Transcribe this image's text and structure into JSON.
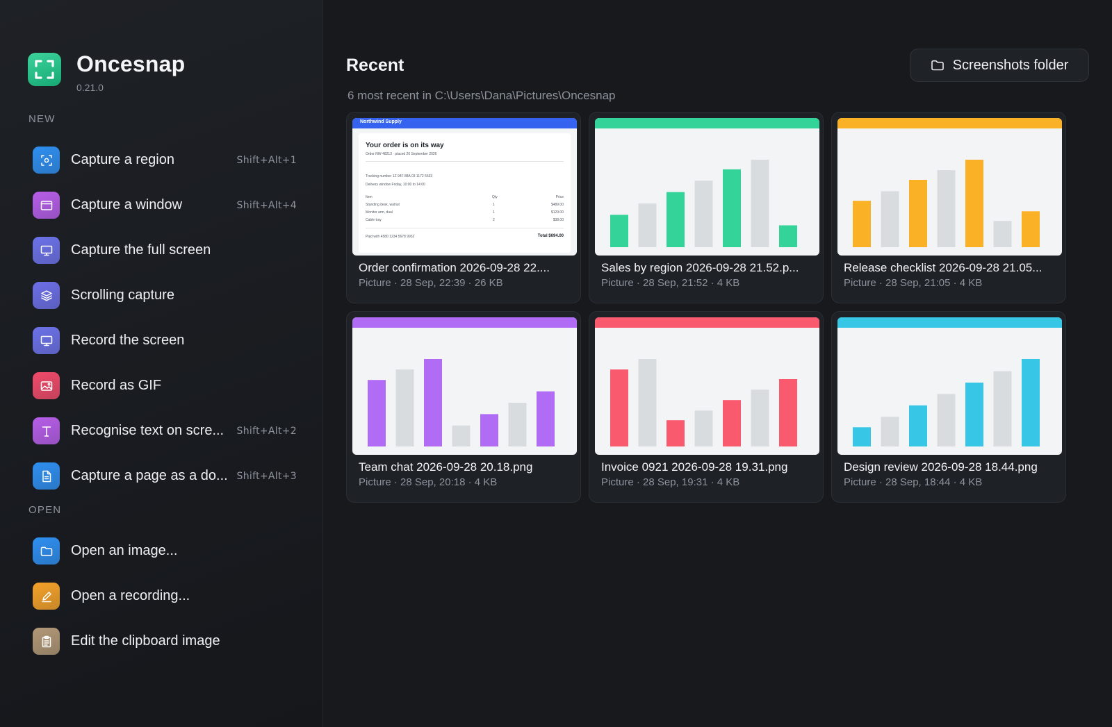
{
  "app": {
    "name": "Oncesnap",
    "version": "0.21.0"
  },
  "sidebar": {
    "sections": [
      {
        "label": "NEW",
        "items": [
          {
            "label": "Capture a region",
            "shortcut": "Shift+Alt+1",
            "icon": "region-capture-icon",
            "color": "#2f8ff0"
          },
          {
            "label": "Capture a window",
            "shortcut": "Shift+Alt+4",
            "icon": "window-icon",
            "color": "#b65ee8"
          },
          {
            "label": "Capture the full screen",
            "shortcut": "",
            "icon": "monitor-icon",
            "color": "#6c72e8"
          },
          {
            "label": "Scrolling capture",
            "shortcut": "",
            "icon": "layers-icon",
            "color": "#6c6fe6"
          },
          {
            "label": "Record the screen",
            "shortcut": "",
            "icon": "monitor-icon",
            "color": "#6c72e8"
          },
          {
            "label": "Record as GIF",
            "shortcut": "",
            "icon": "image-icon",
            "color": "#ef4b6a"
          },
          {
            "label": "Recognise text on scre...",
            "shortcut": "Shift+Alt+2",
            "icon": "text-icon",
            "color": "#b65ee8"
          },
          {
            "label": "Capture a page as a do...",
            "shortcut": "Shift+Alt+3",
            "icon": "document-icon",
            "color": "#2f8ff0"
          }
        ]
      },
      {
        "label": "OPEN",
        "items": [
          {
            "label": "Open an image...",
            "shortcut": "",
            "icon": "folder-icon",
            "color": "#2f8ff0"
          },
          {
            "label": "Open a recording...",
            "shortcut": "",
            "icon": "pen-icon",
            "color": "#f3a22a"
          },
          {
            "label": "Edit the clipboard image",
            "shortcut": "",
            "icon": "clipboard-icon",
            "color": "#b29877"
          }
        ]
      }
    ]
  },
  "main": {
    "title": "Recent",
    "subtitle": "6 most recent in C:\\Users\\Dana\\Pictures\\Oncesnap",
    "folder_button": "Screenshots folder",
    "cards": [
      {
        "kind": "document",
        "title": "Order confirmation 2026-09-28 22....",
        "meta": "Picture · 28 Sep, 22:39 · 26 KB",
        "doc": {
          "brand": "Northwind Supply",
          "heading": "Your order is on its way",
          "order_line": "Order NW-48213 · placed 26 September 2026",
          "tracking": "Tracking number  1Z 94F 88A 03 1172 5533",
          "delivery": "Delivery window  Friday, 10:00 to 14:00",
          "col_item": "Item",
          "col_qty": "Qty",
          "col_price": "Price",
          "rows": [
            {
              "item": "Standing desk, walnut",
              "qty": "1",
              "price": "$489.00"
            },
            {
              "item": "Monitor arm, dual",
              "qty": "1",
              "price": "$129.00"
            },
            {
              "item": "Cable tray",
              "qty": "2",
              "price": "$38.00"
            }
          ],
          "paid": "Paid with      4580 1234 5678 9932",
          "total": "Total  $694.00"
        }
      },
      {
        "kind": "chart",
        "title": "Sales by region 2026-09-28 21.52.p...",
        "meta": "Picture · 28 Sep, 21:52 · 4 KB",
        "accent": "#34d399",
        "bars": [
          0.37,
          0.5,
          0.63,
          0.76,
          0.89,
          1.0,
          0.25
        ]
      },
      {
        "kind": "chart",
        "title": "Release checklist 2026-09-28 21.05...",
        "meta": "Picture · 28 Sep, 21:05 · 4 KB",
        "accent": "#fbb126",
        "bars": [
          0.53,
          0.64,
          0.77,
          0.88,
          1.0,
          0.3,
          0.41
        ]
      },
      {
        "kind": "chart",
        "title": "Team chat 2026-09-28 20.18.png",
        "meta": "Picture · 28 Sep, 20:18 · 4 KB",
        "accent": "#b06cf5",
        "bars": [
          0.76,
          0.88,
          1.0,
          0.24,
          0.37,
          0.5,
          0.63
        ]
      },
      {
        "kind": "chart",
        "title": "Invoice 0921 2026-09-28 19.31.png",
        "meta": "Picture · 28 Sep, 19:31 · 4 KB",
        "accent": "#fa5a6e",
        "bars": [
          0.88,
          1.0,
          0.3,
          0.41,
          0.53,
          0.65,
          0.77
        ]
      },
      {
        "kind": "chart",
        "title": "Design review 2026-09-28 18.44.png",
        "meta": "Picture · 28 Sep, 18:44 · 4 KB",
        "accent": "#38c6e6",
        "bars": [
          0.22,
          0.34,
          0.47,
          0.6,
          0.73,
          0.86,
          1.0
        ]
      }
    ]
  }
}
